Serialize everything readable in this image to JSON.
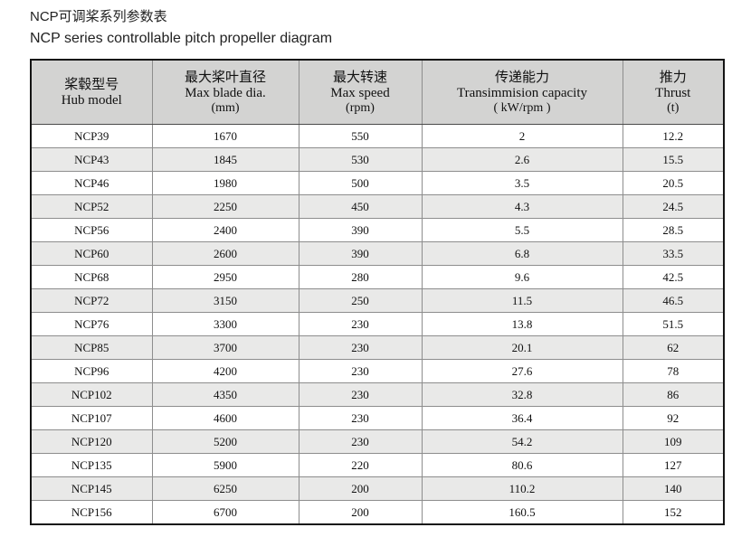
{
  "page": {
    "title_zh": "NCP可调桨系列参数表",
    "title_en": "NCP series controllable pitch propeller diagram"
  },
  "table": {
    "columns": [
      {
        "zh": "桨毂型号",
        "en": "Hub model",
        "unit": ""
      },
      {
        "zh": "最大桨叶直径",
        "en": "Max blade dia.",
        "unit": "(mm)"
      },
      {
        "zh": "最大转速",
        "en": "Max speed",
        "unit": "(rpm)"
      },
      {
        "zh": "传递能力",
        "en": "Transimmision capacity",
        "unit": "( kW/rpm )"
      },
      {
        "zh": "推力",
        "en": "Thrust",
        "unit": "(t)"
      }
    ],
    "rows": [
      [
        "NCP39",
        "1670",
        "550",
        "2",
        "12.2"
      ],
      [
        "NCP43",
        "1845",
        "530",
        "2.6",
        "15.5"
      ],
      [
        "NCP46",
        "1980",
        "500",
        "3.5",
        "20.5"
      ],
      [
        "NCP52",
        "2250",
        "450",
        "4.3",
        "24.5"
      ],
      [
        "NCP56",
        "2400",
        "390",
        "5.5",
        "28.5"
      ],
      [
        "NCP60",
        "2600",
        "390",
        "6.8",
        "33.5"
      ],
      [
        "NCP68",
        "2950",
        "280",
        "9.6",
        "42.5"
      ],
      [
        "NCP72",
        "3150",
        "250",
        "11.5",
        "46.5"
      ],
      [
        "NCP76",
        "3300",
        "230",
        "13.8",
        "51.5"
      ],
      [
        "NCP85",
        "3700",
        "230",
        "20.1",
        "62"
      ],
      [
        "NCP96",
        "4200",
        "230",
        "27.6",
        "78"
      ],
      [
        "NCP102",
        "4350",
        "230",
        "32.8",
        "86"
      ],
      [
        "NCP107",
        "4600",
        "230",
        "36.4",
        "92"
      ],
      [
        "NCP120",
        "5200",
        "230",
        "54.2",
        "109"
      ],
      [
        "NCP135",
        "5900",
        "220",
        "80.6",
        "127"
      ],
      [
        "NCP145",
        "6250",
        "200",
        "110.2",
        "140"
      ],
      [
        "NCP156",
        "6700",
        "200",
        "160.5",
        "152"
      ]
    ]
  },
  "colors": {
    "header_bg": "#d3d3d2",
    "row_alt_bg": "#e9e9e8",
    "border_inner": "#8d8d8d",
    "border_outer": "#141414",
    "text": "#111111"
  }
}
